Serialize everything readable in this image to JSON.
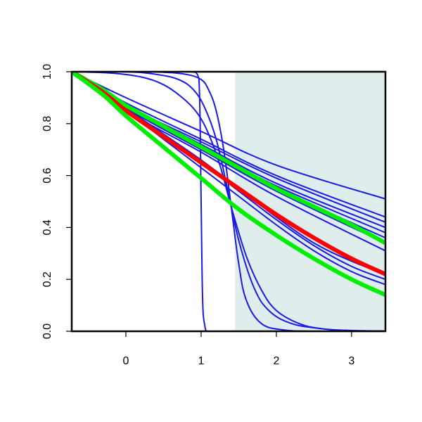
{
  "chart_data": {
    "type": "line",
    "title": "",
    "xlabel": "",
    "ylabel": "",
    "xlim": [
      -0.72,
      3.45
    ],
    "ylim": [
      0.0,
      1.0
    ],
    "x_ticks": [
      0,
      1,
      2,
      3
    ],
    "y_ticks": [
      0.0,
      0.2,
      0.4,
      0.6,
      0.8,
      1.0
    ],
    "x_tick_labels": [
      "0",
      "1",
      "2",
      "3"
    ],
    "y_tick_labels": [
      "0.0",
      "0.2",
      "0.4",
      "0.6",
      "0.8",
      "1.0"
    ],
    "grid": false,
    "legend": "none",
    "shaded_region": {
      "x_start": 1.45,
      "x_end": 3.45,
      "color": "#e0eded"
    },
    "colors": {
      "thin_curves": "#1a1ae6",
      "highlight_red": "#ff0000",
      "highlight_green": "#00ee00"
    },
    "series": [
      {
        "color": "#1a1ae6",
        "width": "thin",
        "x": [
          -0.72,
          0.0,
          1.0,
          2.0,
          3.45
        ],
        "y": [
          1.0,
          0.9,
          0.77,
          0.64,
          0.51
        ]
      },
      {
        "color": "#1a1ae6",
        "width": "thin",
        "x": [
          -0.72,
          0.0,
          1.0,
          2.0,
          3.45
        ],
        "y": [
          1.0,
          0.88,
          0.74,
          0.6,
          0.44
        ]
      },
      {
        "color": "#1a1ae6",
        "width": "thin",
        "x": [
          -0.72,
          0.0,
          1.0,
          2.0,
          3.45
        ],
        "y": [
          1.0,
          0.87,
          0.73,
          0.59,
          0.42
        ]
      },
      {
        "color": "#1a1ae6",
        "width": "thin",
        "x": [
          -0.72,
          0.0,
          1.0,
          2.0,
          3.45
        ],
        "y": [
          1.0,
          0.87,
          0.72,
          0.57,
          0.4
        ]
      },
      {
        "color": "#1a1ae6",
        "width": "thin",
        "x": [
          -0.72,
          0.0,
          1.0,
          2.0,
          3.45
        ],
        "y": [
          1.0,
          0.86,
          0.71,
          0.56,
          0.38
        ]
      },
      {
        "color": "#1a1ae6",
        "width": "thin",
        "x": [
          -0.72,
          0.0,
          1.0,
          2.0,
          3.45
        ],
        "y": [
          1.0,
          0.86,
          0.7,
          0.55,
          0.36
        ]
      },
      {
        "color": "#1a1ae6",
        "width": "thin",
        "x": [
          -0.72,
          0.0,
          1.0,
          2.0,
          3.45
        ],
        "y": [
          1.0,
          0.86,
          0.7,
          0.54,
          0.34
        ]
      },
      {
        "color": "#1a1ae6",
        "width": "thin",
        "x": [
          -0.72,
          0.0,
          1.0,
          2.0,
          3.45
        ],
        "y": [
          1.0,
          0.85,
          0.69,
          0.52,
          0.31
        ]
      },
      {
        "color": "#1a1ae6",
        "width": "thin",
        "x": [
          -0.72,
          0.0,
          0.5,
          1.0,
          1.5,
          2.0,
          2.5,
          3.0,
          3.45
        ],
        "y": [
          1.0,
          0.86,
          0.76,
          0.66,
          0.55,
          0.44,
          0.34,
          0.27,
          0.22
        ]
      },
      {
        "color": "#1a1ae6",
        "width": "thin",
        "x": [
          -0.72,
          0.0,
          0.5,
          1.0,
          1.5,
          2.0,
          2.5,
          3.0,
          3.45
        ],
        "y": [
          1.0,
          0.85,
          0.75,
          0.65,
          0.54,
          0.43,
          0.33,
          0.25,
          0.2
        ]
      },
      {
        "color": "#1a1ae6",
        "width": "thin",
        "x": [
          -0.72,
          0.0,
          0.5,
          1.0,
          1.5,
          2.0,
          2.5,
          3.0,
          3.45
        ],
        "y": [
          1.0,
          0.85,
          0.74,
          0.63,
          0.52,
          0.41,
          0.31,
          0.23,
          0.18
        ]
      },
      {
        "color": "#1a1ae6",
        "width": "thin",
        "x": [
          -0.72,
          -0.2,
          0.2,
          0.5,
          0.75,
          0.95,
          1.1,
          1.25,
          1.4,
          1.6,
          1.8,
          2.0,
          2.3,
          2.6,
          3.0,
          3.45
        ],
        "y": [
          1.0,
          0.995,
          0.98,
          0.95,
          0.9,
          0.84,
          0.76,
          0.64,
          0.48,
          0.29,
          0.16,
          0.08,
          0.03,
          0.01,
          0.003,
          0.001
        ]
      },
      {
        "color": "#1a1ae6",
        "width": "thin",
        "x": [
          -0.72,
          0.0,
          0.4,
          0.7,
          0.9,
          1.05,
          1.2,
          1.35,
          1.5,
          1.7,
          1.9,
          2.2,
          2.6,
          3.0,
          3.45
        ],
        "y": [
          1.0,
          1.0,
          0.99,
          0.97,
          0.93,
          0.86,
          0.74,
          0.55,
          0.35,
          0.17,
          0.08,
          0.03,
          0.01,
          0.0,
          0.0
        ]
      },
      {
        "color": "#1a1ae6",
        "width": "thin",
        "x": [
          -0.72,
          0.0,
          0.5,
          0.8,
          1.0,
          1.1,
          1.2,
          1.3,
          1.4,
          1.5,
          1.6,
          1.8,
          2.1,
          2.5,
          3.45
        ],
        "y": [
          1.0,
          1.0,
          0.998,
          0.99,
          0.97,
          0.93,
          0.85,
          0.7,
          0.48,
          0.26,
          0.12,
          0.03,
          0.005,
          0.0,
          0.0
        ]
      },
      {
        "color": "#1a1ae6",
        "width": "thin",
        "x": [
          -0.72,
          0.5,
          0.85,
          0.95,
          0.98,
          1.0,
          1.02,
          1.05,
          1.08,
          1.15,
          1.3,
          3.45
        ],
        "y": [
          1.0,
          1.0,
          1.0,
          0.99,
          0.9,
          0.5,
          0.12,
          0.02,
          0.0,
          0.0,
          0.0,
          0.0
        ]
      },
      {
        "color": "#00ee00",
        "width": "thick",
        "x": [
          -0.72,
          -0.3,
          0.0,
          0.5,
          1.0,
          1.5,
          2.0,
          2.5,
          3.0,
          3.45
        ],
        "y": [
          1.0,
          0.93,
          0.87,
          0.79,
          0.71,
          0.63,
          0.55,
          0.48,
          0.41,
          0.34
        ]
      },
      {
        "color": "#ff0000",
        "width": "thick",
        "x": [
          -0.72,
          -0.3,
          0.0,
          0.5,
          1.0,
          1.5,
          2.0,
          2.5,
          3.0,
          3.45
        ],
        "y": [
          1.0,
          0.92,
          0.85,
          0.75,
          0.65,
          0.55,
          0.45,
          0.36,
          0.28,
          0.22
        ]
      },
      {
        "color": "#00ee00",
        "width": "thick",
        "x": [
          -0.72,
          -0.3,
          0.0,
          0.5,
          1.0,
          1.5,
          2.0,
          2.5,
          3.0,
          3.45
        ],
        "y": [
          1.0,
          0.91,
          0.83,
          0.71,
          0.59,
          0.47,
          0.37,
          0.28,
          0.2,
          0.14
        ]
      }
    ]
  }
}
